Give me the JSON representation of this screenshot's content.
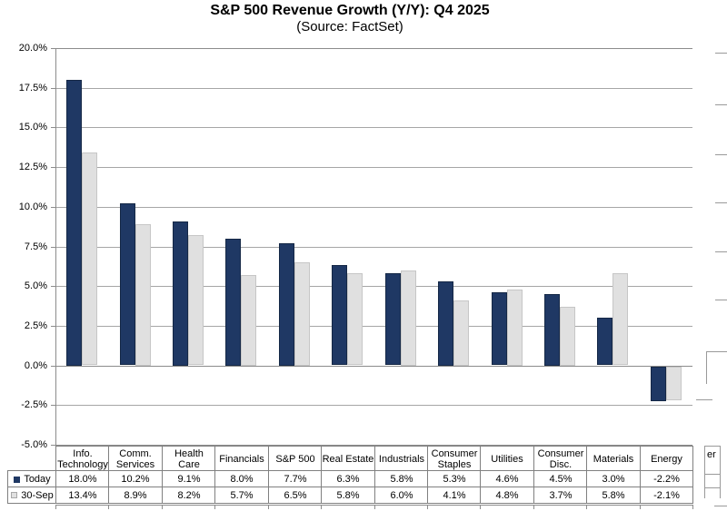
{
  "page": {
    "title": "S&P 500 Revenue Growth (Y/Y): Q4 2025",
    "subtitle": "(Source: FactSet)"
  },
  "chart_data": {
    "type": "bar",
    "title": "S&P 500 Revenue Growth (Y/Y): Q4 2025",
    "subtitle": "(Source: FactSet)",
    "categories": [
      "Info. Technology",
      "Comm. Services",
      "Health Care",
      "Financials",
      "S&P 500",
      "Real Estate",
      "Industrials",
      "Consumer Staples",
      "Utilities",
      "Consumer Disc.",
      "Materials",
      "Energy"
    ],
    "series": [
      {
        "name": "Today",
        "color": "#1F3864",
        "values": [
          18.0,
          10.2,
          9.1,
          8.0,
          7.7,
          6.3,
          5.8,
          5.3,
          4.6,
          4.5,
          3.0,
          -2.2
        ],
        "display": [
          "18.0%",
          "10.2%",
          "9.1%",
          "8.0%",
          "7.7%",
          "6.3%",
          "5.8%",
          "5.3%",
          "4.6%",
          "4.5%",
          "3.0%",
          "-2.2%"
        ]
      },
      {
        "name": "30-Sep",
        "color": "#E0E0E0",
        "values": [
          13.4,
          8.9,
          8.2,
          5.7,
          6.5,
          5.8,
          6.0,
          4.1,
          4.8,
          3.7,
          5.8,
          -2.1
        ],
        "display": [
          "13.4%",
          "8.9%",
          "8.2%",
          "5.7%",
          "6.5%",
          "5.8%",
          "6.0%",
          "4.1%",
          "4.8%",
          "3.7%",
          "5.8%",
          "-2.1%"
        ]
      }
    ],
    "ylim": [
      -5,
      20
    ],
    "ytick_step": 2.5,
    "ytick_labels": [
      "20.0%",
      "17.5%",
      "15.0%",
      "12.5%",
      "10.0%",
      "7.5%",
      "5.0%",
      "2.5%",
      "0.0%",
      "-2.5%",
      "-5.0%"
    ],
    "grid": true,
    "legend_position": "data-table-left",
    "data_table_shown": true
  },
  "colors": {
    "bar_today": "#1F3864",
    "bar_30sep": "#E0E0E0",
    "gridline": "#a6a6a6",
    "table_border": "#808080"
  },
  "adjacent_fragment": {
    "partial_text": "er"
  }
}
